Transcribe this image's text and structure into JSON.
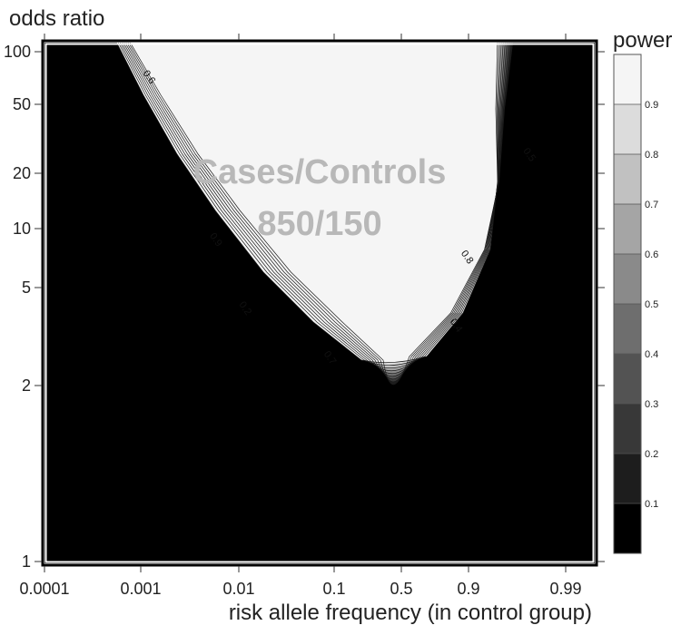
{
  "chart_data": {
    "type": "contour",
    "title": "",
    "xlabel": "risk allele frequency (in control group)",
    "ylabel": "odds ratio",
    "x_ticks": [
      {
        "value": 0.0001,
        "label": "0.0001"
      },
      {
        "value": 0.001,
        "label": "0.001"
      },
      {
        "value": 0.01,
        "label": "0.01"
      },
      {
        "value": 0.1,
        "label": "0.1"
      },
      {
        "value": 0.5,
        "label": "0.5"
      },
      {
        "value": 0.9,
        "label": "0.9"
      },
      {
        "value": 0.99,
        "label": "0.99"
      }
    ],
    "y_ticks": [
      {
        "value": 1,
        "label": "1"
      },
      {
        "value": 2,
        "label": "2"
      },
      {
        "value": 5,
        "label": "5"
      },
      {
        "value": 10,
        "label": "10"
      },
      {
        "value": 20,
        "label": "20"
      },
      {
        "value": 50,
        "label": "50"
      },
      {
        "value": 100,
        "label": "100"
      }
    ],
    "colorbar": {
      "title": "power",
      "levels": [
        0,
        0.1,
        0.2,
        0.3,
        0.4,
        0.5,
        0.6,
        0.7,
        0.8,
        0.9,
        1.0
      ],
      "labels": [
        "0.1",
        "0.2",
        "0.3",
        "0.4",
        "0.5",
        "0.6",
        "0.7",
        "0.8",
        "0.9"
      ],
      "colors": [
        "#000000",
        "#1d1d1d",
        "#383838",
        "#535353",
        "#6e6e6e",
        "#8a8a8a",
        "#a5a5a5",
        "#c1c1c1",
        "#dcdcdc",
        "#f5f5f5"
      ]
    },
    "contour_labels": [
      {
        "text": "0.6",
        "x": 0.00115,
        "y": 70
      },
      {
        "text": "0.9",
        "x": 0.0055,
        "y": 8.6
      },
      {
        "text": "0.2",
        "x": 0.011,
        "y": 4.05
      },
      {
        "text": "0.7",
        "x": 0.085,
        "y": 2.55
      },
      {
        "text": "0.5",
        "x": 0.953,
        "y": 25
      },
      {
        "text": "0.8",
        "x": 0.87,
        "y": 7.0
      },
      {
        "text": "0.4",
        "x": 0.79,
        "y": 3.45
      }
    ],
    "annotation": [
      "Cases/Controls",
      "850/150"
    ]
  }
}
